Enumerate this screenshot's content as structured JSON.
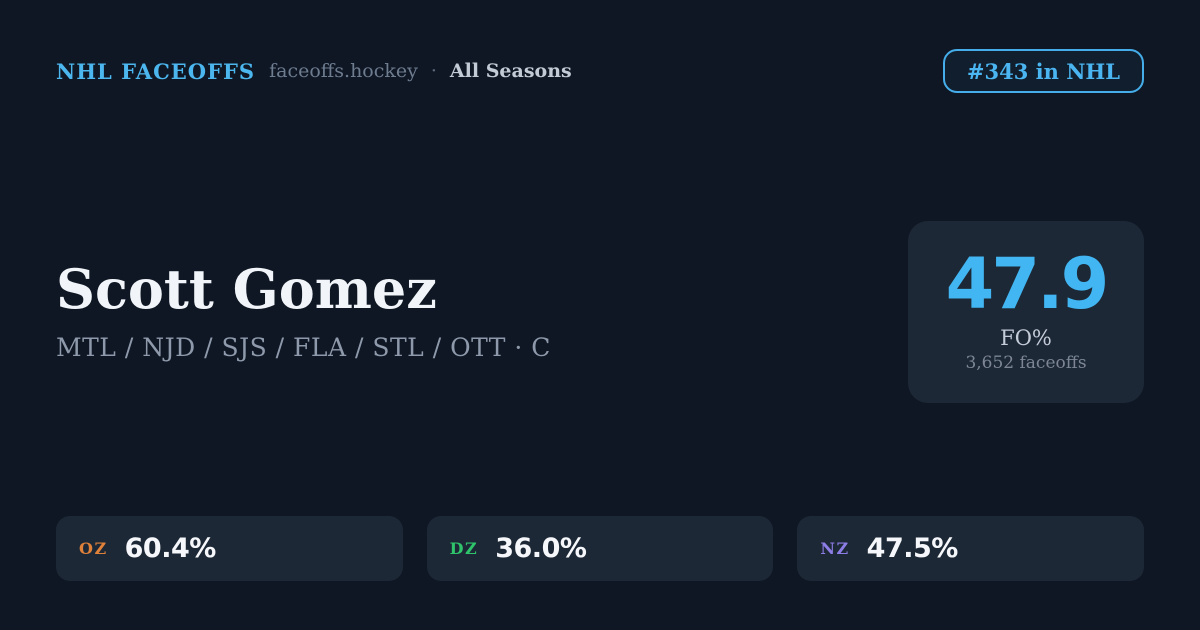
{
  "header": {
    "brand": "NHL FACEOFFS",
    "site": "faceoffs.hockey",
    "separator": "·",
    "season_label": "All Seasons",
    "rank_badge": "#343 in NHL"
  },
  "player": {
    "name": "Scott Gomez",
    "teams_position": "MTL / NJD / SJS / FLA / STL / OTT · C"
  },
  "faceoff_summary": {
    "value": "47.9",
    "label": "FO%",
    "total": "3,652 faceoffs"
  },
  "zones": [
    {
      "code": "OZ",
      "value": "60.4%",
      "color": "#e0813a"
    },
    {
      "code": "DZ",
      "value": "36.0%",
      "color": "#2fc46b"
    },
    {
      "code": "NZ",
      "value": "47.5%",
      "color": "#8d7de6"
    }
  ],
  "colors": {
    "background": "#0f1724",
    "card": "#1d2836",
    "accent_blue": "#43b4f0",
    "text_primary": "#f1f5f9",
    "text_muted": "#8e9aab"
  }
}
